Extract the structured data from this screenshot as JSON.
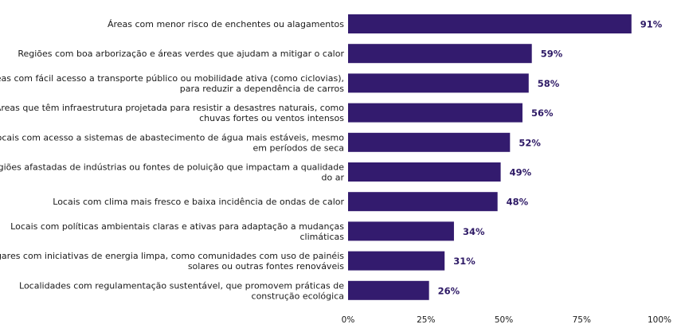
{
  "chart_data": {
    "type": "bar",
    "orientation": "horizontal",
    "categories": [
      [
        "Áreas com menor risco de enchentes ou alagamentos"
      ],
      [
        "Regiões com boa arborização e áreas verdes que ajudam a mitigar o calor"
      ],
      [
        "Áreas com fácil acesso a transporte público ou mobilidade ativa (como ciclovias),",
        "para reduzir a dependência de carros"
      ],
      [
        "Áreas que têm infraestrutura projetada para resistir a desastres naturais, como",
        "chuvas fortes ou ventos intensos"
      ],
      [
        "Locais com acesso a sistemas de abastecimento de água mais estáveis, mesmo",
        "em períodos de seca"
      ],
      [
        "Regiões afastadas de indústrias ou fontes de poluição que impactam a qualidade",
        "do ar"
      ],
      [
        "Locais com clima mais fresco e baixa incidência de ondas de calor"
      ],
      [
        "Locais com políticas ambientais claras e ativas para adaptação a mudanças",
        "climáticas"
      ],
      [
        "Lugares com iniciativas de energia limpa, como comunidades com uso de painéis",
        "solares ou outras fontes renováveis"
      ],
      [
        "Localidades com regulamentação sustentável, que promovem práticas de",
        "construção ecológica"
      ]
    ],
    "values": [
      91,
      59,
      58,
      56,
      52,
      49,
      48,
      34,
      31,
      26
    ],
    "value_labels": [
      "91%",
      "59%",
      "58%",
      "56%",
      "52%",
      "49%",
      "48%",
      "34%",
      "31%",
      "26%"
    ],
    "xlim": [
      0,
      100
    ],
    "xticks": [
      0,
      25,
      50,
      75,
      100
    ],
    "xtick_labels": [
      "0%",
      "25%",
      "50%",
      "75%",
      "100%"
    ],
    "grid": false,
    "title": "",
    "xlabel": "",
    "ylabel": "",
    "colors": {
      "bar": "#331b6e",
      "value_label": "#2e1a66",
      "text": "#1a1a1a"
    }
  }
}
